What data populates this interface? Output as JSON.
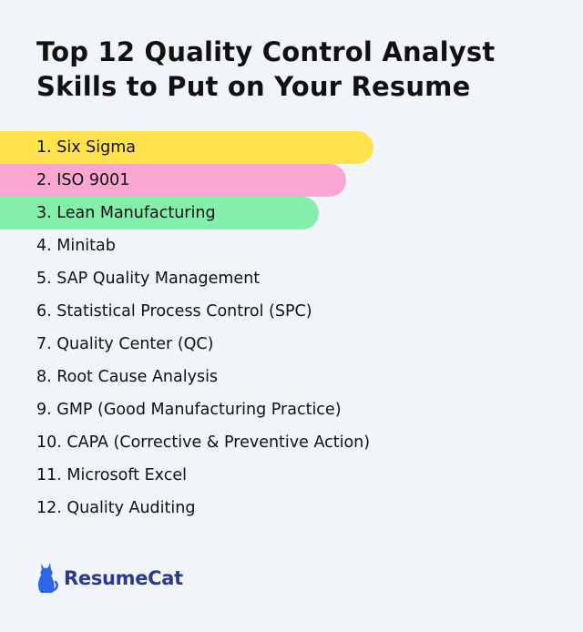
{
  "title": "Top 12 Quality Control Analyst Skills to Put on Your Resume",
  "skills": [
    {
      "label": "1. Six Sigma",
      "highlight": "#ffe24e"
    },
    {
      "label": "2. ISO 9001",
      "highlight": "#f9a6d3"
    },
    {
      "label": "3. Lean Manufacturing",
      "highlight": "#84eeab"
    },
    {
      "label": "4. Minitab"
    },
    {
      "label": "5. SAP Quality Management"
    },
    {
      "label": "6. Statistical Process Control (SPC)"
    },
    {
      "label": "7. Quality Center (QC)"
    },
    {
      "label": "8. Root Cause Analysis"
    },
    {
      "label": "9. GMP (Good Manufacturing Practice)"
    },
    {
      "label": "10. CAPA (Corrective & Preventive Action)"
    },
    {
      "label": "11. Microsoft Excel"
    },
    {
      "label": "12. Quality Auditing"
    }
  ],
  "brand": {
    "name": "ResumeCat",
    "icon": "cat-icon",
    "color": "#2a3b8f"
  }
}
